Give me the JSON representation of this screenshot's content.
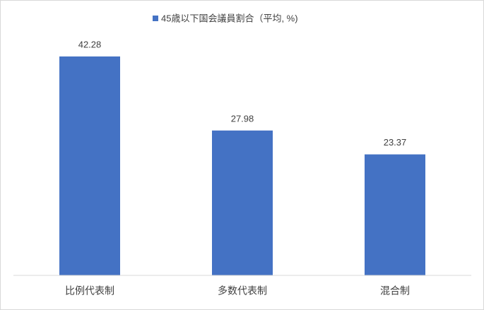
{
  "chart_data": {
    "type": "bar",
    "categories": [
      "比例代表制",
      "多数代表制",
      "混合制"
    ],
    "series": [
      {
        "name": "45歳以下国会議員割合（平均, %)",
        "color": "#4472c4",
        "values": [
          42.28,
          27.98,
          23.37
        ]
      }
    ],
    "ylim": [
      0,
      45
    ],
    "legend": "top"
  }
}
